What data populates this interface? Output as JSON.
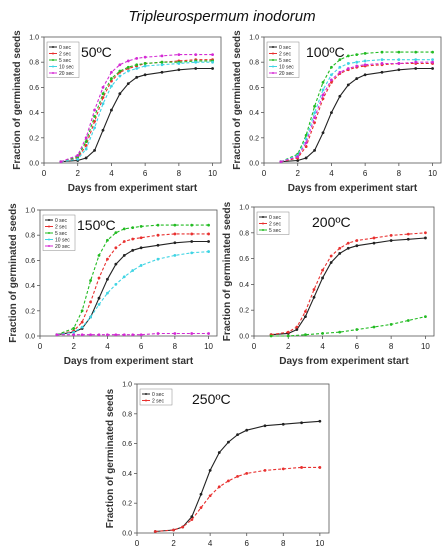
{
  "figure_title": "Tripleurospermum inodorum",
  "colors": {
    "0 sec": "#222222",
    "2 sec": "#e8302f",
    "5 sec": "#22bb22",
    "10 sec": "#3fd4e4",
    "20 sec": "#d42ad4"
  },
  "chart_data": [
    {
      "type": "line",
      "title": "50ºC",
      "xlabel": "Days from experiment start",
      "ylabel": "Fraction of germinated seeds",
      "xlim": [
        0,
        10.5
      ],
      "ylim": [
        0,
        1.0
      ],
      "xticks": [
        0,
        2,
        4,
        6,
        8,
        10
      ],
      "yticks": [
        0.0,
        0.2,
        0.4,
        0.6,
        0.8,
        1.0
      ],
      "grid": false,
      "legend_position": "top-left",
      "legend": [
        "0 sec",
        "2 sec",
        "5 sec",
        "10 sec",
        "20 sec"
      ],
      "series": [
        {
          "name": "0 sec",
          "color": "#222222",
          "style": "solid",
          "x": [
            1,
            2,
            2.5,
            3,
            3.5,
            4,
            4.5,
            5,
            5.5,
            6,
            7,
            8,
            9,
            10
          ],
          "y": [
            0.01,
            0.02,
            0.04,
            0.1,
            0.26,
            0.42,
            0.55,
            0.63,
            0.68,
            0.7,
            0.72,
            0.74,
            0.75,
            0.75
          ]
        },
        {
          "name": "2 sec",
          "color": "#e8302f",
          "style": "dashed",
          "x": [
            1,
            2,
            2.5,
            3,
            3.5,
            4,
            4.5,
            5,
            5.5,
            6,
            7,
            8,
            9,
            10
          ],
          "y": [
            0.01,
            0.04,
            0.14,
            0.33,
            0.52,
            0.65,
            0.72,
            0.75,
            0.77,
            0.79,
            0.8,
            0.81,
            0.82,
            0.82
          ]
        },
        {
          "name": "5 sec",
          "color": "#22bb22",
          "style": "dashed",
          "x": [
            1,
            2,
            2.5,
            3,
            3.5,
            4,
            4.5,
            5,
            5.5,
            6,
            7,
            8,
            9,
            10
          ],
          "y": [
            0.01,
            0.05,
            0.17,
            0.37,
            0.55,
            0.67,
            0.73,
            0.76,
            0.78,
            0.79,
            0.8,
            0.8,
            0.81,
            0.81
          ]
        },
        {
          "name": "10 sec",
          "color": "#3fd4e4",
          "style": "dashed",
          "x": [
            1,
            2,
            2.5,
            3,
            3.5,
            4,
            4.5,
            5,
            5.5,
            6,
            7,
            8,
            9,
            10
          ],
          "y": [
            0.01,
            0.03,
            0.11,
            0.28,
            0.47,
            0.61,
            0.69,
            0.73,
            0.75,
            0.77,
            0.78,
            0.79,
            0.8,
            0.8
          ]
        },
        {
          "name": "20 sec",
          "color": "#d42ad4",
          "style": "dashed",
          "x": [
            1,
            2,
            2.5,
            3,
            3.5,
            4,
            4.5,
            5,
            5.5,
            6,
            7,
            8,
            9,
            10
          ],
          "y": [
            0.01,
            0.06,
            0.2,
            0.42,
            0.6,
            0.72,
            0.78,
            0.81,
            0.83,
            0.84,
            0.85,
            0.86,
            0.86,
            0.86
          ]
        }
      ]
    },
    {
      "type": "line",
      "title": "100ºC",
      "xlabel": "Days from experiment start",
      "ylabel": "Fraction of germinated seeds",
      "xlim": [
        0,
        10.5
      ],
      "ylim": [
        0,
        1.0
      ],
      "xticks": [
        0,
        2,
        4,
        6,
        8,
        10
      ],
      "yticks": [
        0.0,
        0.2,
        0.4,
        0.6,
        0.8,
        1.0
      ],
      "grid": false,
      "legend_position": "top-left",
      "legend": [
        "0 sec",
        "2 sec",
        "5 sec",
        "10 sec",
        "20 sec"
      ],
      "series": [
        {
          "name": "0 sec",
          "color": "#222222",
          "style": "solid",
          "x": [
            1,
            2,
            2.5,
            3,
            3.5,
            4,
            4.5,
            5,
            5.5,
            6,
            7,
            8,
            9,
            10
          ],
          "y": [
            0.01,
            0.02,
            0.04,
            0.1,
            0.24,
            0.4,
            0.53,
            0.62,
            0.67,
            0.7,
            0.72,
            0.74,
            0.75,
            0.75
          ]
        },
        {
          "name": "2 sec",
          "color": "#e8302f",
          "style": "dashed",
          "x": [
            1,
            2,
            2.5,
            3,
            3.5,
            4,
            4.5,
            5,
            5.5,
            6,
            7,
            8,
            9,
            10
          ],
          "y": [
            0.01,
            0.04,
            0.13,
            0.32,
            0.51,
            0.64,
            0.71,
            0.74,
            0.76,
            0.77,
            0.78,
            0.79,
            0.79,
            0.79
          ]
        },
        {
          "name": "5 sec",
          "color": "#22bb22",
          "style": "dashed",
          "x": [
            1,
            2,
            2.5,
            3,
            3.5,
            4,
            4.5,
            5,
            5.5,
            6,
            7,
            8,
            9,
            10
          ],
          "y": [
            0.01,
            0.07,
            0.22,
            0.45,
            0.64,
            0.76,
            0.82,
            0.85,
            0.86,
            0.87,
            0.88,
            0.88,
            0.88,
            0.88
          ]
        },
        {
          "name": "10 sec",
          "color": "#3fd4e4",
          "style": "dashed",
          "x": [
            1,
            2,
            2.5,
            3,
            3.5,
            4,
            4.5,
            5,
            5.5,
            6,
            7,
            8,
            9,
            10
          ],
          "y": [
            0.01,
            0.06,
            0.19,
            0.4,
            0.58,
            0.7,
            0.76,
            0.79,
            0.8,
            0.81,
            0.82,
            0.82,
            0.82,
            0.82
          ]
        },
        {
          "name": "20 sec",
          "color": "#d42ad4",
          "style": "dashed",
          "x": [
            1,
            2,
            2.5,
            3,
            3.5,
            4,
            4.5,
            5,
            5.5,
            6,
            7,
            8,
            9,
            10
          ],
          "y": [
            0.01,
            0.05,
            0.16,
            0.36,
            0.54,
            0.66,
            0.72,
            0.75,
            0.77,
            0.78,
            0.79,
            0.79,
            0.8,
            0.8
          ]
        }
      ]
    },
    {
      "type": "line",
      "title": "150ºC",
      "xlabel": "Days from experiment start",
      "ylabel": "Fraction of germinated seeds",
      "xlim": [
        0,
        10.5
      ],
      "ylim": [
        0,
        1.0
      ],
      "xticks": [
        0,
        2,
        4,
        6,
        8,
        10
      ],
      "yticks": [
        0.0,
        0.2,
        0.4,
        0.6,
        0.8,
        1.0
      ],
      "grid": false,
      "legend_position": "top-left",
      "legend": [
        "0 sec",
        "2 sec",
        "5 sec",
        "10 sec",
        "20 sec"
      ],
      "series": [
        {
          "name": "0 sec",
          "color": "#222222",
          "style": "solid",
          "x": [
            1,
            2,
            2.5,
            3,
            3.5,
            4,
            4.5,
            5,
            5.5,
            6,
            7,
            8,
            9,
            10
          ],
          "y": [
            0.01,
            0.03,
            0.06,
            0.15,
            0.3,
            0.45,
            0.57,
            0.64,
            0.68,
            0.7,
            0.72,
            0.74,
            0.75,
            0.75
          ]
        },
        {
          "name": "2 sec",
          "color": "#e8302f",
          "style": "dashed",
          "x": [
            1,
            2,
            2.5,
            3,
            3.5,
            4,
            4.5,
            5,
            5.5,
            6,
            7,
            8,
            9,
            10
          ],
          "y": [
            0.01,
            0.04,
            0.11,
            0.27,
            0.46,
            0.61,
            0.7,
            0.75,
            0.77,
            0.78,
            0.8,
            0.81,
            0.81,
            0.81
          ]
        },
        {
          "name": "5 sec",
          "color": "#22bb22",
          "style": "dashed",
          "x": [
            1,
            2,
            2.5,
            3,
            3.5,
            4,
            4.5,
            5,
            5.5,
            6,
            7,
            8,
            9,
            10
          ],
          "y": [
            0.01,
            0.06,
            0.2,
            0.44,
            0.64,
            0.76,
            0.82,
            0.85,
            0.86,
            0.87,
            0.88,
            0.88,
            0.88,
            0.88
          ]
        },
        {
          "name": "10 sec",
          "color": "#3fd4e4",
          "style": "dashed",
          "x": [
            1,
            2,
            2.5,
            3,
            3.5,
            4,
            4.5,
            5,
            5.5,
            6,
            7,
            8,
            9,
            10
          ],
          "y": [
            0.01,
            0.03,
            0.07,
            0.15,
            0.25,
            0.34,
            0.41,
            0.47,
            0.52,
            0.56,
            0.61,
            0.64,
            0.66,
            0.67
          ]
        },
        {
          "name": "20 sec",
          "color": "#d42ad4",
          "style": "dashed",
          "x": [
            1,
            2,
            2.5,
            3,
            3.5,
            4,
            4.5,
            5,
            5.5,
            6,
            7,
            8,
            9,
            10
          ],
          "y": [
            0.01,
            0.01,
            0.01,
            0.01,
            0.01,
            0.01,
            0.01,
            0.01,
            0.01,
            0.01,
            0.02,
            0.02,
            0.02,
            0.02
          ]
        }
      ]
    },
    {
      "type": "line",
      "title": "200ºC",
      "xlabel": "Days from experiment start",
      "ylabel": "Fraction of germinated seeds",
      "xlim": [
        0,
        10.5
      ],
      "ylim": [
        0,
        1.0
      ],
      "xticks": [
        0,
        2,
        4,
        6,
        8,
        10
      ],
      "yticks": [
        0.0,
        0.2,
        0.4,
        0.6,
        0.8,
        1.0
      ],
      "grid": false,
      "legend_position": "top-left",
      "legend": [
        "0 sec",
        "2 sec",
        "5 sec"
      ],
      "series": [
        {
          "name": "0 sec",
          "color": "#222222",
          "style": "solid",
          "x": [
            1,
            2,
            2.5,
            3,
            3.5,
            4,
            4.5,
            5,
            5.5,
            6,
            7,
            8,
            9,
            10
          ],
          "y": [
            0.01,
            0.02,
            0.05,
            0.15,
            0.3,
            0.45,
            0.57,
            0.64,
            0.68,
            0.7,
            0.72,
            0.74,
            0.75,
            0.76
          ]
        },
        {
          "name": "2 sec",
          "color": "#e8302f",
          "style": "dashed",
          "x": [
            1,
            2,
            2.5,
            3,
            3.5,
            4,
            4.5,
            5,
            5.5,
            6,
            7,
            8,
            9,
            10
          ],
          "y": [
            0.01,
            0.03,
            0.07,
            0.19,
            0.36,
            0.51,
            0.62,
            0.68,
            0.72,
            0.74,
            0.76,
            0.78,
            0.79,
            0.8
          ]
        },
        {
          "name": "5 sec",
          "color": "#22bb22",
          "style": "dashed",
          "x": [
            1,
            2,
            3,
            4,
            5,
            6,
            7,
            8,
            9,
            10
          ],
          "y": [
            0.0,
            0.0,
            0.01,
            0.02,
            0.03,
            0.05,
            0.07,
            0.09,
            0.12,
            0.15
          ]
        }
      ]
    },
    {
      "type": "line",
      "title": "250ºC",
      "xlabel": "Days from experiment start",
      "ylabel": "Fraction of germinated seeds",
      "xlim": [
        0,
        10.5
      ],
      "ylim": [
        0,
        1.0
      ],
      "xticks": [
        0,
        2,
        4,
        6,
        8,
        10
      ],
      "yticks": [
        0.0,
        0.2,
        0.4,
        0.6,
        0.8,
        1.0
      ],
      "grid": false,
      "legend_position": "top-left",
      "legend": [
        "0 sec",
        "2 sec"
      ],
      "series": [
        {
          "name": "0 sec",
          "color": "#222222",
          "style": "solid",
          "x": [
            1,
            2,
            2.5,
            3,
            3.5,
            4,
            4.5,
            5,
            5.5,
            6,
            7,
            8,
            9,
            10
          ],
          "y": [
            0.01,
            0.02,
            0.04,
            0.11,
            0.26,
            0.42,
            0.54,
            0.61,
            0.66,
            0.69,
            0.72,
            0.73,
            0.74,
            0.75
          ]
        },
        {
          "name": "2 sec",
          "color": "#e8302f",
          "style": "dashed",
          "x": [
            1,
            2,
            2.5,
            3,
            3.5,
            4,
            4.5,
            5,
            5.5,
            6,
            7,
            8,
            9,
            10
          ],
          "y": [
            0.01,
            0.02,
            0.04,
            0.09,
            0.17,
            0.25,
            0.31,
            0.35,
            0.38,
            0.4,
            0.42,
            0.43,
            0.44,
            0.44
          ]
        }
      ]
    }
  ]
}
